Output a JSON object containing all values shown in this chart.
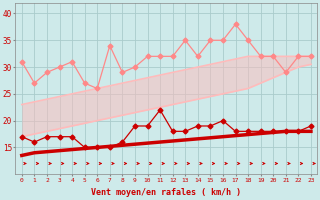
{
  "x": [
    0,
    1,
    2,
    3,
    4,
    5,
    6,
    7,
    8,
    9,
    10,
    11,
    12,
    13,
    14,
    15,
    16,
    17,
    18,
    19,
    20,
    21,
    22,
    23
  ],
  "line_rafales": [
    31,
    27,
    29,
    30,
    31,
    27,
    26,
    34,
    29,
    30,
    32,
    32,
    32,
    35,
    32,
    35,
    35,
    38,
    35,
    32,
    32,
    29,
    32,
    32
  ],
  "line_trend_upper": [
    23.0,
    23.5,
    24.0,
    24.5,
    25.0,
    25.5,
    26.0,
    26.5,
    27.0,
    27.5,
    28.0,
    28.5,
    29.0,
    29.5,
    30.0,
    30.5,
    31.0,
    31.5,
    32.0,
    32.0,
    32.0,
    32.0,
    32.0,
    32.0
  ],
  "line_trend_lower": [
    17.0,
    17.5,
    18.0,
    18.5,
    19.0,
    19.5,
    20.0,
    20.5,
    21.0,
    21.5,
    22.0,
    22.5,
    23.0,
    23.5,
    24.0,
    24.5,
    25.0,
    25.5,
    26.0,
    27.0,
    28.0,
    29.0,
    30.0,
    30.5
  ],
  "line_moyen": [
    17,
    16,
    17,
    17,
    17,
    15,
    15,
    15,
    16,
    19,
    19,
    22,
    18,
    18,
    19,
    19,
    20,
    18,
    18,
    18,
    18,
    18,
    18,
    19
  ],
  "line_trend_moyen": [
    13.5,
    14.0,
    14.2,
    14.4,
    14.6,
    14.8,
    15.0,
    15.2,
    15.4,
    15.6,
    15.8,
    16.0,
    16.2,
    16.4,
    16.6,
    16.8,
    17.0,
    17.2,
    17.4,
    17.6,
    17.8,
    18.0,
    18.0,
    18.0
  ],
  "bg_color": "#ceeaea",
  "grid_color": "#aacccc",
  "color_rafales": "#ff8888",
  "color_trend_band": "#ffbbbb",
  "color_moyen": "#cc0000",
  "color_trend_moyen": "#cc0000",
  "xlabel": "Vent moyen/en rafales ( km/h )",
  "ylim": [
    10,
    42
  ],
  "yticks": [
    15,
    20,
    25,
    30,
    35,
    40
  ],
  "xlim": [
    -0.5,
    23.5
  ],
  "figsize": [
    3.2,
    2.0
  ],
  "dpi": 100
}
